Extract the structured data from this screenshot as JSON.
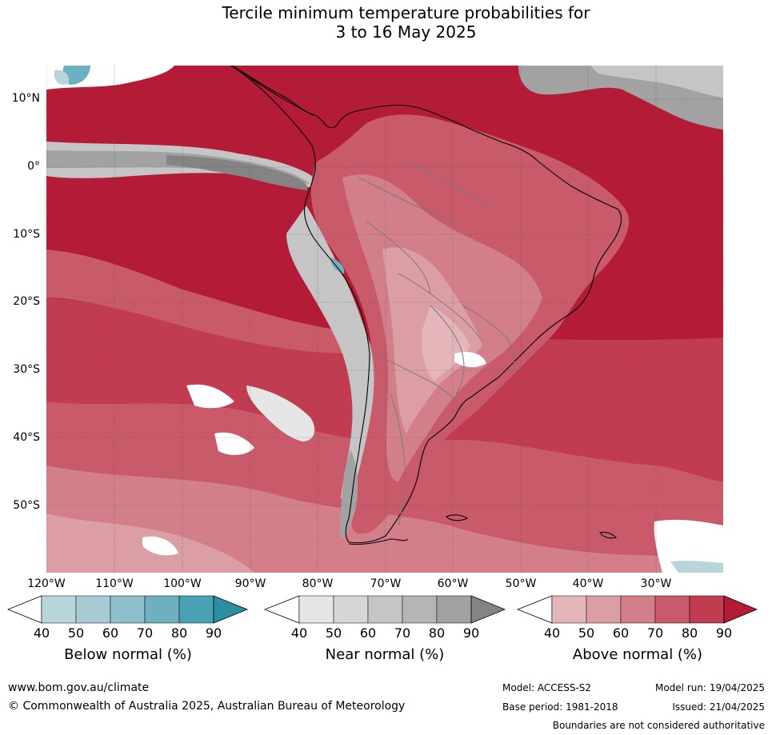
{
  "title": {
    "line1": "Tercile minimum temperature probabilities for",
    "line2": "3 to 16 May 2025"
  },
  "map": {
    "lat_labels": [
      "10°N",
      "0°",
      "10°S",
      "20°S",
      "30°S",
      "40°S",
      "50°S"
    ],
    "lon_labels": [
      "120°W",
      "110°W",
      "100°W",
      "90°W",
      "80°W",
      "70°W",
      "60°W",
      "50°W",
      "40°W",
      "30°W"
    ],
    "colors": {
      "above_90": "#b31b36",
      "above_80": "#c13b51",
      "above_70": "#c85a69",
      "above_60": "#d37f89",
      "above_50": "#dc9ea5",
      "above_40": "#e4b6ba",
      "near_90": "#848484",
      "near_80": "#a2a2a2",
      "near_70": "#b5b5b5",
      "near_60": "#c5c5c5",
      "near_40": "#e6e6e6",
      "below_40": "#b8d5dc",
      "below_70": "#6eb0c0",
      "below_80": "#49a1b4",
      "white": "#ffffff"
    }
  },
  "colorbars": {
    "below": {
      "title": "Below normal (%)",
      "ticks": [
        "40",
        "50",
        "60",
        "70",
        "80",
        "90"
      ],
      "colors": [
        "#b8d5dc",
        "#a6cbd4",
        "#8ebfcb",
        "#6eb0c0",
        "#49a1b4",
        "#2b8fa4"
      ]
    },
    "near": {
      "title": "Near normal (%)",
      "ticks": [
        "40",
        "50",
        "60",
        "70",
        "80",
        "90"
      ],
      "colors": [
        "#e6e6e6",
        "#d6d6d6",
        "#c5c5c5",
        "#b5b5b5",
        "#a2a2a2",
        "#848484"
      ]
    },
    "above": {
      "title": "Above normal (%)",
      "ticks": [
        "40",
        "50",
        "60",
        "70",
        "80",
        "90"
      ],
      "colors": [
        "#e4b6ba",
        "#dc9ea5",
        "#d37f89",
        "#c85a69",
        "#c13b51",
        "#b31b36"
      ]
    }
  },
  "footer": {
    "website": "www.bom.gov.au/climate",
    "copyright": "© Commonwealth of Australia 2025, Australian Bureau of Meteorology",
    "model": "Model: ACCESS-S2",
    "model_run": "Model run: 19/04/2025",
    "base_period": "Base period: 1981-2018",
    "issued": "Issued: 21/04/2025",
    "disclaimer": "Boundaries are not considered authoritative"
  }
}
